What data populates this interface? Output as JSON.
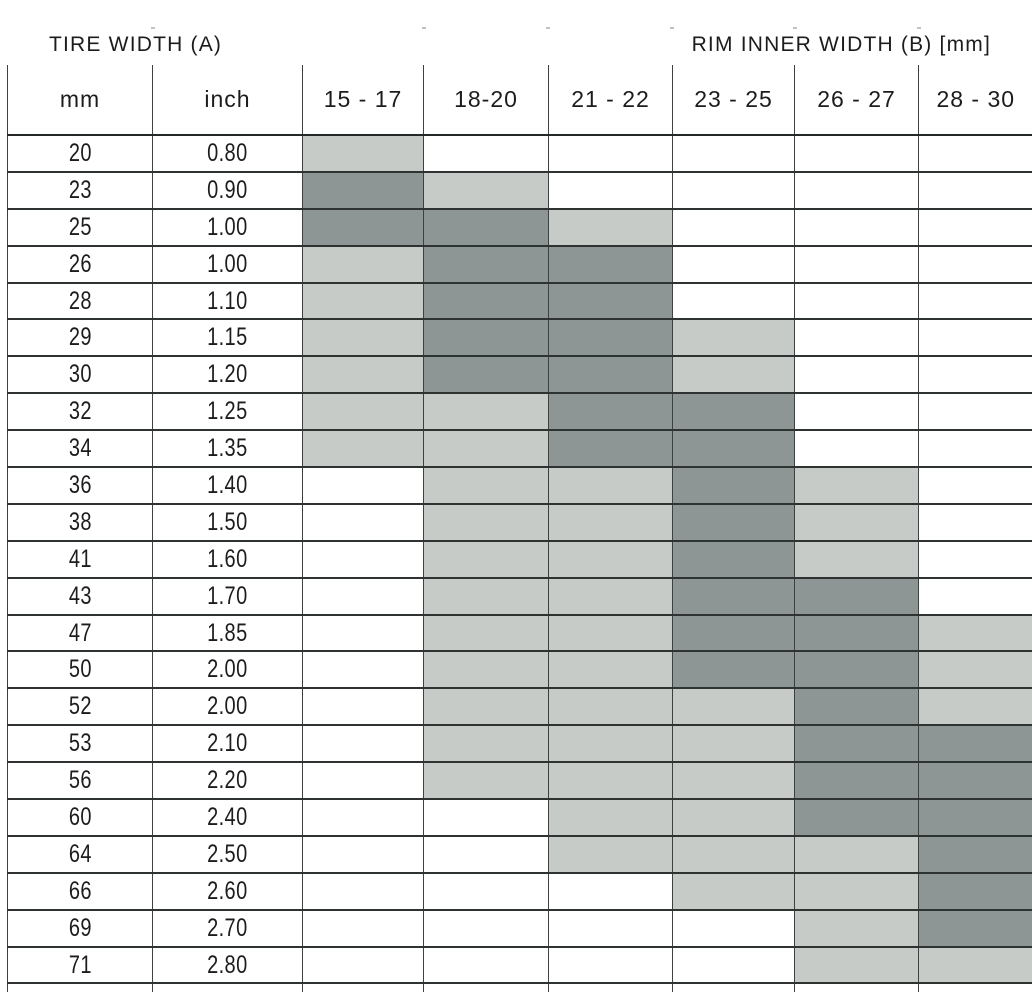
{
  "chart_data": {
    "type": "heatmap",
    "title_left": "TIRE WIDTH (A)",
    "title_right": "RIM INNER WIDTH (B) [mm]",
    "columns": [
      "mm",
      "inch",
      "15 - 17",
      "18-20",
      "21 - 22",
      "23 - 25",
      "26 - 27",
      "28 - 30"
    ],
    "rim_width_ranges_mm": [
      "15 - 17",
      "18-20",
      "21 - 22",
      "23 - 25",
      "26 - 27",
      "28 - 30"
    ],
    "shade_colors": {
      "none": "#ffffff",
      "light": "#c6cbc8",
      "dark": "#8d9694"
    },
    "shade_levels": {
      "0": "white",
      "1": "light-gray",
      "2": "dark-gray"
    },
    "grid_line_color": "#2e3331",
    "rows": [
      {
        "mm": "20",
        "inch": "0.80",
        "shading": [
          1,
          0,
          0,
          0,
          0,
          0
        ]
      },
      {
        "mm": "23",
        "inch": "0.90",
        "shading": [
          2,
          1,
          0,
          0,
          0,
          0
        ]
      },
      {
        "mm": "25",
        "inch": "1.00",
        "shading": [
          2,
          2,
          1,
          0,
          0,
          0
        ]
      },
      {
        "mm": "26",
        "inch": "1.00",
        "shading": [
          1,
          2,
          2,
          0,
          0,
          0
        ]
      },
      {
        "mm": "28",
        "inch": "1.10",
        "shading": [
          1,
          2,
          2,
          0,
          0,
          0
        ]
      },
      {
        "mm": "29",
        "inch": "1.15",
        "shading": [
          1,
          2,
          2,
          1,
          0,
          0
        ]
      },
      {
        "mm": "30",
        "inch": "1.20",
        "shading": [
          1,
          2,
          2,
          1,
          0,
          0
        ]
      },
      {
        "mm": "32",
        "inch": "1.25",
        "shading": [
          1,
          1,
          2,
          2,
          0,
          0
        ]
      },
      {
        "mm": "34",
        "inch": "1.35",
        "shading": [
          1,
          1,
          2,
          2,
          0,
          0
        ]
      },
      {
        "mm": "36",
        "inch": "1.40",
        "shading": [
          0,
          1,
          1,
          2,
          1,
          0
        ]
      },
      {
        "mm": "38",
        "inch": "1.50",
        "shading": [
          0,
          1,
          1,
          2,
          1,
          0
        ]
      },
      {
        "mm": "41",
        "inch": "1.60",
        "shading": [
          0,
          1,
          1,
          2,
          1,
          0
        ]
      },
      {
        "mm": "43",
        "inch": "1.70",
        "shading": [
          0,
          1,
          1,
          2,
          2,
          0
        ]
      },
      {
        "mm": "47",
        "inch": "1.85",
        "shading": [
          0,
          1,
          1,
          2,
          2,
          1
        ]
      },
      {
        "mm": "50",
        "inch": "2.00",
        "shading": [
          0,
          1,
          1,
          2,
          2,
          1
        ]
      },
      {
        "mm": "52",
        "inch": "2.00",
        "shading": [
          0,
          1,
          1,
          1,
          2,
          1
        ]
      },
      {
        "mm": "53",
        "inch": "2.10",
        "shading": [
          0,
          1,
          1,
          1,
          2,
          2
        ]
      },
      {
        "mm": "56",
        "inch": "2.20",
        "shading": [
          0,
          1,
          1,
          1,
          2,
          2
        ]
      },
      {
        "mm": "60",
        "inch": "2.40",
        "shading": [
          0,
          0,
          1,
          1,
          2,
          2
        ]
      },
      {
        "mm": "64",
        "inch": "2.50",
        "shading": [
          0,
          0,
          1,
          1,
          1,
          2
        ]
      },
      {
        "mm": "66",
        "inch": "2.60",
        "shading": [
          0,
          0,
          0,
          1,
          1,
          2
        ]
      },
      {
        "mm": "69",
        "inch": "2.70",
        "shading": [
          0,
          0,
          0,
          0,
          1,
          2
        ]
      },
      {
        "mm": "71",
        "inch": "2.80",
        "shading": [
          0,
          0,
          0,
          0,
          1,
          1
        ]
      }
    ]
  }
}
